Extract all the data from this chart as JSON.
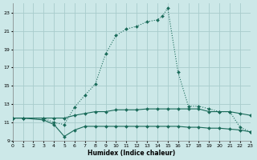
{
  "xlabel": "Humidex (Indice chaleur)",
  "xlim": [
    0,
    23
  ],
  "ylim": [
    9,
    24
  ],
  "yticks": [
    9,
    11,
    13,
    15,
    17,
    19,
    21,
    23
  ],
  "xticks": [
    0,
    1,
    2,
    3,
    4,
    5,
    6,
    7,
    8,
    9,
    10,
    11,
    12,
    13,
    14,
    15,
    16,
    17,
    18,
    19,
    20,
    21,
    22,
    23
  ],
  "background_color": "#cce8e8",
  "grid_color": "#a8cccc",
  "line_color": "#1a6b5a",
  "curve_x": [
    0,
    1,
    3,
    4,
    5,
    6,
    7,
    8,
    9,
    10,
    11,
    12,
    13,
    14,
    14.5,
    15,
    16,
    17,
    18,
    19,
    20,
    21,
    22,
    23
  ],
  "curve_y": [
    11.5,
    11.5,
    11.5,
    11.0,
    10.8,
    12.7,
    14.0,
    15.2,
    18.5,
    20.5,
    21.2,
    21.5,
    22.0,
    22.2,
    22.6,
    23.5,
    16.5,
    12.8,
    12.8,
    12.5,
    12.2,
    12.2,
    10.5,
    10.0
  ],
  "upper_x": [
    0,
    1,
    3,
    4,
    5,
    6,
    7,
    8,
    9,
    10,
    11,
    12,
    13,
    14,
    15,
    16,
    17,
    18,
    19,
    20,
    21,
    22,
    23
  ],
  "upper_y": [
    11.5,
    11.5,
    11.5,
    11.5,
    11.5,
    11.8,
    12.0,
    12.2,
    12.2,
    12.4,
    12.4,
    12.4,
    12.5,
    12.5,
    12.5,
    12.5,
    12.5,
    12.5,
    12.2,
    12.2,
    12.2,
    12.0,
    11.8
  ],
  "lower_x": [
    0,
    1,
    3,
    4,
    5,
    6,
    7,
    8,
    9,
    10,
    11,
    12,
    13,
    14,
    15,
    16,
    17,
    18,
    19,
    20,
    21,
    22,
    23
  ],
  "lower_y": [
    11.5,
    11.5,
    11.3,
    10.8,
    9.5,
    10.2,
    10.6,
    10.6,
    10.6,
    10.6,
    10.6,
    10.6,
    10.6,
    10.6,
    10.6,
    10.6,
    10.5,
    10.5,
    10.4,
    10.4,
    10.3,
    10.2,
    10.0
  ]
}
